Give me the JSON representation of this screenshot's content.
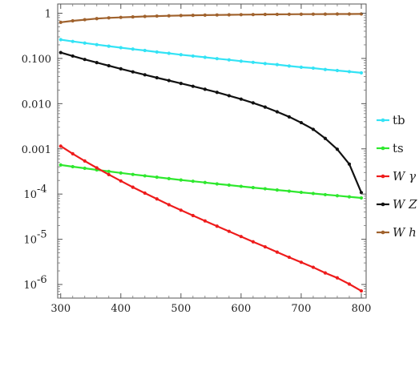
{
  "chart_data": {
    "type": "line",
    "title": "",
    "xlabel": "",
    "ylabel": "",
    "x_scale": "linear",
    "y_scale": "log",
    "xlim": [
      295,
      808
    ],
    "ylim": [
      5e-07,
      1.6
    ],
    "grid": false,
    "legend_position": "right",
    "x_ticks": [
      {
        "value": 300,
        "label": "300"
      },
      {
        "value": 400,
        "label": "400"
      },
      {
        "value": 500,
        "label": "500"
      },
      {
        "value": 600,
        "label": "600"
      },
      {
        "value": 700,
        "label": "700"
      },
      {
        "value": 800,
        "label": "800"
      }
    ],
    "y_ticks": [
      {
        "value": 1,
        "label": "1",
        "kind": "plain"
      },
      {
        "value": 0.1,
        "label": "0.100",
        "kind": "plain"
      },
      {
        "value": 0.01,
        "label": "0.010",
        "kind": "plain"
      },
      {
        "value": 0.001,
        "label": "0.001",
        "kind": "plain"
      },
      {
        "value": 0.0001,
        "label": "10",
        "exp": "-4",
        "kind": "power"
      },
      {
        "value": 1e-05,
        "label": "10",
        "exp": "-5",
        "kind": "power"
      },
      {
        "value": 1e-06,
        "label": "10",
        "exp": "-6",
        "kind": "power"
      }
    ],
    "x": [
      300,
      320,
      340,
      360,
      380,
      400,
      420,
      440,
      460,
      480,
      500,
      520,
      540,
      560,
      580,
      600,
      620,
      640,
      660,
      680,
      700,
      720,
      740,
      760,
      780,
      800
    ],
    "series": [
      {
        "name": "tb",
        "color": "#33e3f5",
        "values": [
          0.26,
          0.238,
          0.219,
          0.202,
          0.187,
          0.173,
          0.161,
          0.15,
          0.139,
          0.13,
          0.121,
          0.113,
          0.106,
          0.099,
          0.093,
          0.087,
          0.082,
          0.077,
          0.073,
          0.068,
          0.064,
          0.061,
          0.057,
          0.054,
          0.051,
          0.048
        ]
      },
      {
        "name": "ts",
        "color": "#2ee82e",
        "values": [
          0.00044,
          0.000404,
          0.000372,
          0.000343,
          0.000317,
          0.000293,
          0.000272,
          0.000253,
          0.000236,
          0.00022,
          0.000205,
          0.000192,
          0.00018,
          0.000168,
          0.000158,
          0.000148,
          0.000139,
          0.000131,
          0.000123,
          0.000116,
          0.000109,
          0.000103,
          9.7e-05,
          9.2e-05,
          8.7e-05,
          8.2e-05
        ]
      },
      {
        "name": "W γ",
        "color": "#ee1c1c",
        "values": [
          0.00115,
          0.00078,
          0.00054,
          0.00038,
          0.00027,
          0.000195,
          0.000142,
          0.000105,
          7.8e-05,
          5.8e-05,
          4.4e-05,
          3.35e-05,
          2.55e-05,
          1.95e-05,
          1.5e-05,
          1.15e-05,
          8.8e-06,
          6.8e-06,
          5.2e-06,
          4e-06,
          3.1e-06,
          2.4e-06,
          1.8e-06,
          1.4e-06,
          1.02e-06,
          7.2e-07
        ]
      },
      {
        "name": "W Z",
        "color": "#111111",
        "values": [
          0.135,
          0.113,
          0.095,
          0.081,
          0.069,
          0.059,
          0.0505,
          0.0435,
          0.0375,
          0.0325,
          0.028,
          0.0242,
          0.0208,
          0.0178,
          0.015,
          0.0126,
          0.0104,
          0.0084,
          0.0066,
          0.0051,
          0.0038,
          0.0027,
          0.0017,
          0.00098,
          0.00046,
          0.000108
        ]
      },
      {
        "name": "W h",
        "color": "#a0622d",
        "values": [
          0.63,
          0.68,
          0.72,
          0.76,
          0.79,
          0.81,
          0.83,
          0.85,
          0.865,
          0.878,
          0.89,
          0.9,
          0.908,
          0.916,
          0.923,
          0.93,
          0.935,
          0.94,
          0.944,
          0.948,
          0.951,
          0.954,
          0.957,
          0.96,
          0.962,
          0.964
        ]
      }
    ]
  }
}
